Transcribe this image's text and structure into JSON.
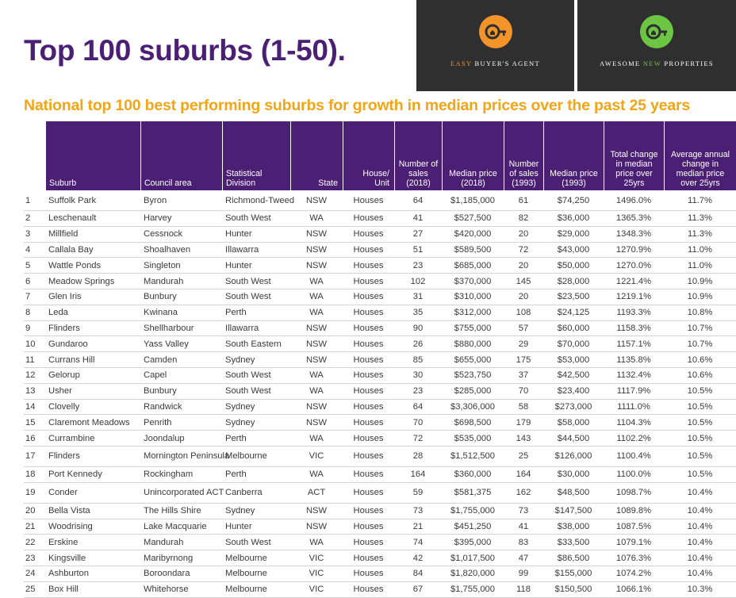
{
  "title": "Top 100 suburbs (1-50).",
  "subtitle": "National top 100 best performing suburbs for growth in median prices over the past 25 years",
  "logos": [
    {
      "text": "EASY BUYER'S AGENT",
      "accent_color": "#f2942a",
      "icon": "key-house-icon"
    },
    {
      "text_parts": [
        "AWESOME ",
        "NEW",
        " PROPERTIES"
      ],
      "accent_color": "#6cc644",
      "icon": "key-house-icon"
    }
  ],
  "colors": {
    "header_bg": "#4b1f73",
    "title": "#4b1f73",
    "subtitle": "#f2a516"
  },
  "table": {
    "headers": {
      "suburb": "Suburb",
      "council": "Council area",
      "division": "Statistical Division",
      "state": "State",
      "house_unit": "House/ Unit",
      "sales_2018": "Number of sales (2018)",
      "median_2018": "Median price (2018)",
      "sales_1993": "Number of sales (1993)",
      "median_1993": "Median price (1993)",
      "total_change": "Total change in median price over 25yrs",
      "annual_change": "Average annual change in median price over 25yrs"
    },
    "rows": [
      {
        "rank": "1",
        "suburb": "Suffolk Park",
        "council": "Byron",
        "division": "Richmond-Tweed",
        "state": "NSW",
        "type": "Houses",
        "sales_2018": "64",
        "median_2018": "$1,185,000",
        "sales_1993": "61",
        "median_1993": "$74,250",
        "total_change": "1496.0%",
        "annual_change": "11.7%"
      },
      {
        "rank": "2",
        "suburb": "Leschenault",
        "council": "Harvey",
        "division": "South West",
        "state": "WA",
        "type": "Houses",
        "sales_2018": "41",
        "median_2018": "$527,500",
        "sales_1993": "82",
        "median_1993": "$36,000",
        "total_change": "1365.3%",
        "annual_change": "11.3%"
      },
      {
        "rank": "3",
        "suburb": "Millfield",
        "council": "Cessnock",
        "division": "Hunter",
        "state": "NSW",
        "type": "Houses",
        "sales_2018": "27",
        "median_2018": "$420,000",
        "sales_1993": "20",
        "median_1993": "$29,000",
        "total_change": "1348.3%",
        "annual_change": "11.3%"
      },
      {
        "rank": "4",
        "suburb": "Callala Bay",
        "council": "Shoalhaven",
        "division": "Illawarra",
        "state": "NSW",
        "type": "Houses",
        "sales_2018": "51",
        "median_2018": "$589,500",
        "sales_1993": "72",
        "median_1993": "$43,000",
        "total_change": "1270.9%",
        "annual_change": "11.0%"
      },
      {
        "rank": "5",
        "suburb": "Wattle Ponds",
        "council": "Singleton",
        "division": "Hunter",
        "state": "NSW",
        "type": "Houses",
        "sales_2018": "23",
        "median_2018": "$685,000",
        "sales_1993": "20",
        "median_1993": "$50,000",
        "total_change": "1270.0%",
        "annual_change": "11.0%"
      },
      {
        "rank": "6",
        "suburb": "Meadow Springs",
        "council": "Mandurah",
        "division": "South West",
        "state": "WA",
        "type": "Houses",
        "sales_2018": "102",
        "median_2018": "$370,000",
        "sales_1993": "145",
        "median_1993": "$28,000",
        "total_change": "1221.4%",
        "annual_change": "10.9%"
      },
      {
        "rank": "7",
        "suburb": "Glen Iris",
        "council": "Bunbury",
        "division": "South West",
        "state": "WA",
        "type": "Houses",
        "sales_2018": "31",
        "median_2018": "$310,000",
        "sales_1993": "20",
        "median_1993": "$23,500",
        "total_change": "1219.1%",
        "annual_change": "10.9%"
      },
      {
        "rank": "8",
        "suburb": "Leda",
        "council": "Kwinana",
        "division": "Perth",
        "state": "WA",
        "type": "Houses",
        "sales_2018": "35",
        "median_2018": "$312,000",
        "sales_1993": "108",
        "median_1993": "$24,125",
        "total_change": "1193.3%",
        "annual_change": "10.8%"
      },
      {
        "rank": "9",
        "suburb": "Flinders",
        "council": "Shellharbour",
        "division": "Illawarra",
        "state": "NSW",
        "type": "Houses",
        "sales_2018": "90",
        "median_2018": "$755,000",
        "sales_1993": "57",
        "median_1993": "$60,000",
        "total_change": "1158.3%",
        "annual_change": "10.7%"
      },
      {
        "rank": "10",
        "suburb": "Gundaroo",
        "council": "Yass Valley",
        "division": "South Eastern",
        "state": "NSW",
        "type": "Houses",
        "sales_2018": "26",
        "median_2018": "$880,000",
        "sales_1993": "29",
        "median_1993": "$70,000",
        "total_change": "1157.1%",
        "annual_change": "10.7%"
      },
      {
        "rank": "11",
        "suburb": "Currans Hill",
        "council": "Camden",
        "division": "Sydney",
        "state": "NSW",
        "type": "Houses",
        "sales_2018": "85",
        "median_2018": "$655,000",
        "sales_1993": "175",
        "median_1993": "$53,000",
        "total_change": "1135.8%",
        "annual_change": "10.6%"
      },
      {
        "rank": "12",
        "suburb": "Gelorup",
        "council": "Capel",
        "division": "South West",
        "state": "WA",
        "type": "Houses",
        "sales_2018": "30",
        "median_2018": "$523,750",
        "sales_1993": "37",
        "median_1993": "$42,500",
        "total_change": "1132.4%",
        "annual_change": "10.6%"
      },
      {
        "rank": "13",
        "suburb": "Usher",
        "council": "Bunbury",
        "division": "South West",
        "state": "WA",
        "type": "Houses",
        "sales_2018": "23",
        "median_2018": "$285,000",
        "sales_1993": "70",
        "median_1993": "$23,400",
        "total_change": "1117.9%",
        "annual_change": "10.5%"
      },
      {
        "rank": "14",
        "suburb": "Clovelly",
        "council": "Randwick",
        "division": "Sydney",
        "state": "NSW",
        "type": "Houses",
        "sales_2018": "64",
        "median_2018": "$3,306,000",
        "sales_1993": "58",
        "median_1993": "$273,000",
        "total_change": "1111.0%",
        "annual_change": "10.5%"
      },
      {
        "rank": "15",
        "suburb": "Claremont Meadows",
        "council": "Penrith",
        "division": "Sydney",
        "state": "NSW",
        "type": "Houses",
        "sales_2018": "70",
        "median_2018": "$698,500",
        "sales_1993": "179",
        "median_1993": "$58,000",
        "total_change": "1104.3%",
        "annual_change": "10.5%"
      },
      {
        "rank": "16",
        "suburb": "Currambine",
        "council": "Joondalup",
        "division": "Perth",
        "state": "WA",
        "type": "Houses",
        "sales_2018": "72",
        "median_2018": "$535,000",
        "sales_1993": "143",
        "median_1993": "$44,500",
        "total_change": "1102.2%",
        "annual_change": "10.5%"
      },
      {
        "rank": "17",
        "suburb": "Flinders",
        "council": "Mornington Peninsula",
        "division": "Melbourne",
        "state": "VIC",
        "type": "Houses",
        "sales_2018": "28",
        "median_2018": "$1,512,500",
        "sales_1993": "25",
        "median_1993": "$126,000",
        "total_change": "1100.4%",
        "annual_change": "10.5%"
      },
      {
        "rank": "18",
        "suburb": "Port Kennedy",
        "council": "Rockingham",
        "division": "Perth",
        "state": "WA",
        "type": "Houses",
        "sales_2018": "164",
        "median_2018": "$360,000",
        "sales_1993": "164",
        "median_1993": "$30,000",
        "total_change": "1100.0%",
        "annual_change": "10.5%"
      },
      {
        "rank": "19",
        "suburb": "Conder",
        "council": "Unincorporated ACT",
        "division": "Canberra",
        "state": "ACT",
        "type": "Houses",
        "sales_2018": "59",
        "median_2018": "$581,375",
        "sales_1993": "162",
        "median_1993": "$48,500",
        "total_change": "1098.7%",
        "annual_change": "10.4%"
      },
      {
        "rank": "20",
        "suburb": "Bella Vista",
        "council": "The Hills Shire",
        "division": "Sydney",
        "state": "NSW",
        "type": "Houses",
        "sales_2018": "73",
        "median_2018": "$1,755,000",
        "sales_1993": "73",
        "median_1993": "$147,500",
        "total_change": "1089.8%",
        "annual_change": "10.4%"
      },
      {
        "rank": "21",
        "suburb": "Woodrising",
        "council": "Lake Macquarie",
        "division": "Hunter",
        "state": "NSW",
        "type": "Houses",
        "sales_2018": "21",
        "median_2018": "$451,250",
        "sales_1993": "41",
        "median_1993": "$38,000",
        "total_change": "1087.5%",
        "annual_change": "10.4%"
      },
      {
        "rank": "22",
        "suburb": "Erskine",
        "council": "Mandurah",
        "division": "South West",
        "state": "WA",
        "type": "Houses",
        "sales_2018": "74",
        "median_2018": "$395,000",
        "sales_1993": "83",
        "median_1993": "$33,500",
        "total_change": "1079.1%",
        "annual_change": "10.4%"
      },
      {
        "rank": "23",
        "suburb": "Kingsville",
        "council": "Maribyrnong",
        "division": "Melbourne",
        "state": "VIC",
        "type": "Houses",
        "sales_2018": "42",
        "median_2018": "$1,017,500",
        "sales_1993": "47",
        "median_1993": "$86,500",
        "total_change": "1076.3%",
        "annual_change": "10.4%"
      },
      {
        "rank": "24",
        "suburb": "Ashburton",
        "council": "Boroondara",
        "division": "Melbourne",
        "state": "VIC",
        "type": "Houses",
        "sales_2018": "84",
        "median_2018": "$1,820,000",
        "sales_1993": "99",
        "median_1993": "$155,000",
        "total_change": "1074.2%",
        "annual_change": "10.4%"
      },
      {
        "rank": "25",
        "suburb": "Box Hill",
        "council": "Whitehorse",
        "division": "Melbourne",
        "state": "VIC",
        "type": "Houses",
        "sales_2018": "67",
        "median_2018": "$1,755,000",
        "sales_1993": "118",
        "median_1993": "$150,500",
        "total_change": "1066.1%",
        "annual_change": "10.3%"
      }
    ]
  }
}
